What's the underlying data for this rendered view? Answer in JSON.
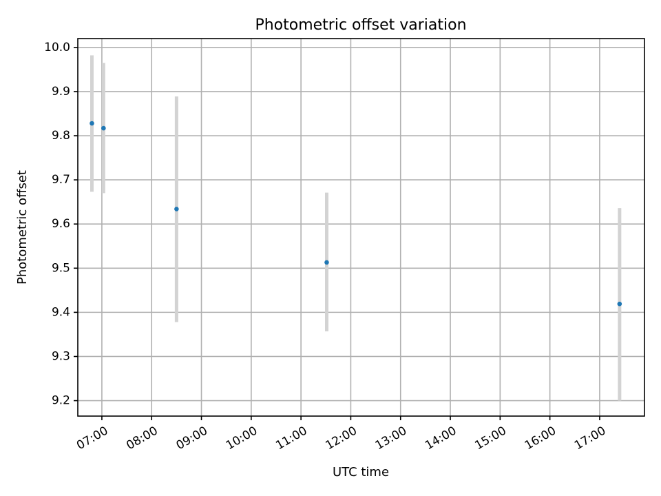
{
  "chart_data": {
    "type": "scatter",
    "title": "Photometric offset variation",
    "xlabel": "UTC time",
    "ylabel": "Photometric offset",
    "x_ticks": [
      "07:00",
      "08:00",
      "09:00",
      "10:00",
      "11:00",
      "12:00",
      "13:00",
      "14:00",
      "15:00",
      "16:00",
      "17:00"
    ],
    "y_ticks": [
      "9.2",
      "9.3",
      "9.4",
      "9.5",
      "9.6",
      "9.7",
      "9.8",
      "9.9",
      "10.0"
    ],
    "xlim": [
      "06:31",
      "17:54"
    ],
    "ylim": [
      9.165,
      10.02
    ],
    "grid": true,
    "points": [
      {
        "x": "06:48",
        "y": 9.828,
        "yerr_low": 9.673,
        "yerr_high": 9.982
      },
      {
        "x": "07:02",
        "y": 9.817,
        "yerr_low": 9.67,
        "yerr_high": 9.965
      },
      {
        "x": "08:30",
        "y": 9.634,
        "yerr_low": 9.378,
        "yerr_high": 9.889
      },
      {
        "x": "11:31",
        "y": 9.513,
        "yerr_low": 9.357,
        "yerr_high": 9.671
      },
      {
        "x": "17:24",
        "y": 9.419,
        "yerr_low": 9.2,
        "yerr_high": 9.636
      }
    ],
    "colors": {
      "point": "#1f77b4",
      "errorbar": "#d3d3d3"
    }
  }
}
